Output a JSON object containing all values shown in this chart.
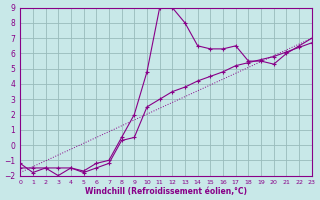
{
  "xlabel": "Windchill (Refroidissement éolien,°C)",
  "xlim": [
    0,
    23
  ],
  "ylim": [
    -2,
    9
  ],
  "xticks": [
    0,
    1,
    2,
    3,
    4,
    5,
    6,
    7,
    8,
    9,
    10,
    11,
    12,
    13,
    14,
    15,
    16,
    17,
    18,
    19,
    20,
    21,
    22,
    23
  ],
  "yticks": [
    -2,
    -1,
    0,
    1,
    2,
    3,
    4,
    5,
    6,
    7,
    8,
    9
  ],
  "bg_color": "#c8e8e8",
  "line_color": "#880088",
  "grid_color": "#99bbbb",
  "curve1_x": [
    0,
    1,
    2,
    3,
    4,
    5,
    6,
    7,
    8,
    9,
    10,
    11,
    12,
    13,
    14,
    15,
    16,
    17,
    18,
    19,
    20,
    21,
    22,
    23
  ],
  "curve1_y": [
    -1.2,
    -1.8,
    -1.5,
    -2.0,
    -1.5,
    -1.7,
    -1.2,
    -1.0,
    0.5,
    2.0,
    4.8,
    9.0,
    9.0,
    8.0,
    6.5,
    6.3,
    6.3,
    6.5,
    5.5,
    5.5,
    5.3,
    6.0,
    6.5,
    7.0
  ],
  "curve2_x": [
    0,
    1,
    2,
    3,
    4,
    5,
    6,
    7,
    8,
    9,
    10,
    11,
    12,
    13,
    14,
    15,
    16,
    17,
    18,
    19,
    20,
    21,
    22,
    23
  ],
  "curve2_y": [
    -1.5,
    -1.5,
    -1.5,
    -1.5,
    -1.5,
    -1.8,
    -1.5,
    -1.2,
    0.3,
    0.5,
    2.5,
    3.0,
    3.5,
    3.8,
    4.2,
    4.5,
    4.8,
    5.2,
    5.4,
    5.6,
    5.8,
    6.1,
    6.4,
    6.7
  ],
  "line3_x": [
    0,
    23
  ],
  "line3_y": [
    -1.8,
    7.0
  ]
}
